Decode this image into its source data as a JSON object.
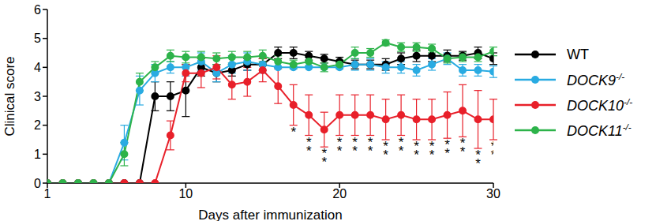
{
  "chart_data": {
    "type": "line",
    "x_label": "Days after immunization",
    "y_label": "Clinical score",
    "x": [
      1,
      2,
      3,
      4,
      5,
      6,
      7,
      8,
      9,
      10,
      11,
      12,
      13,
      14,
      15,
      16,
      17,
      18,
      19,
      20,
      21,
      22,
      23,
      24,
      25,
      26,
      27,
      28,
      29,
      30
    ],
    "xlim": [
      1,
      30
    ],
    "xticks": [
      1,
      10,
      20,
      30
    ],
    "ylim": [
      0,
      6
    ],
    "yticks": [
      0,
      1,
      2,
      3,
      4,
      5,
      6
    ],
    "grid": false,
    "legend": "right",
    "marker": "circle",
    "line_style": "solid",
    "series": [
      {
        "name": "WT",
        "color": "#000000",
        "values": [
          0,
          0,
          0,
          0,
          0,
          0,
          0,
          3.0,
          3.0,
          3.2,
          4.0,
          3.8,
          3.9,
          4.1,
          4.1,
          4.5,
          4.5,
          4.4,
          4.3,
          4.2,
          4.1,
          4.1,
          4.1,
          4.3,
          4.4,
          4.4,
          4.4,
          4.4,
          4.5,
          4.3
        ],
        "errors": [
          0,
          0,
          0,
          0,
          0,
          0,
          0,
          0.5,
          0.5,
          0.9,
          0.3,
          0.3,
          0.2,
          0.2,
          0.2,
          0.2,
          0.2,
          0.15,
          0.15,
          0.15,
          0.15,
          0.15,
          0.2,
          0.2,
          0.2,
          0.2,
          0.2,
          0.15,
          0.2,
          0.2
        ]
      },
      {
        "name": "DOCK9-/-",
        "color": "#29abe2",
        "values": [
          0,
          0,
          0,
          0,
          0,
          1.4,
          3.2,
          3.8,
          4.0,
          4.0,
          4.2,
          3.8,
          4.1,
          4.2,
          4.1,
          4.0,
          4.0,
          4.0,
          4.0,
          4.0,
          4.1,
          4.1,
          4.0,
          4.0,
          3.9,
          4.1,
          4.3,
          3.9,
          3.9,
          3.85
        ],
        "errors": [
          0,
          0,
          0,
          0,
          0,
          0.6,
          0.5,
          0.3,
          0.2,
          0.3,
          0.3,
          0.3,
          0.3,
          0.3,
          0.3,
          0,
          0,
          0,
          0,
          0,
          0.2,
          0.2,
          0.2,
          0.2,
          0.2,
          0.2,
          0.2,
          0.2,
          0.2,
          0.2
        ]
      },
      {
        "name": "DOCK10-/-",
        "color": "#e8202a",
        "values": [
          0,
          0,
          0,
          0,
          0,
          0,
          0,
          0,
          1.65,
          3.8,
          3.8,
          4.0,
          3.4,
          3.5,
          3.9,
          3.35,
          2.7,
          2.35,
          1.85,
          2.35,
          2.35,
          2.35,
          2.2,
          2.35,
          2.2,
          2.2,
          2.35,
          2.5,
          2.2,
          2.2
        ],
        "errors": [
          0,
          0,
          0,
          0,
          0,
          0,
          0,
          0,
          0.5,
          0.3,
          0.5,
          0.4,
          0.5,
          0.5,
          0.4,
          0.6,
          0.7,
          0.7,
          0.6,
          0.7,
          0.7,
          0.7,
          0.7,
          0.7,
          0.7,
          0.7,
          0.8,
          0.9,
          1.0,
          0.7
        ],
        "annotations": [
          {
            "x": 17,
            "text": "*"
          },
          {
            "x": 18,
            "text": "**"
          },
          {
            "x": 19,
            "text": "**"
          },
          {
            "x": 20,
            "text": "**"
          },
          {
            "x": 21,
            "text": "**"
          },
          {
            "x": 22,
            "text": "**"
          },
          {
            "x": 23,
            "text": "**"
          },
          {
            "x": 24,
            "text": "**"
          },
          {
            "x": 25,
            "text": "**"
          },
          {
            "x": 26,
            "text": "**"
          },
          {
            "x": 27,
            "text": "**"
          },
          {
            "x": 28,
            "text": "**"
          },
          {
            "x": 29,
            "text": "**"
          },
          {
            "x": 30,
            "text": "**"
          }
        ]
      },
      {
        "name": "DOCK11-/-",
        "color": "#2db34a",
        "values": [
          0,
          0,
          0,
          0,
          0,
          1.0,
          3.5,
          4.0,
          4.4,
          4.35,
          4.35,
          4.3,
          4.35,
          4.35,
          4.4,
          4.2,
          4.1,
          4.2,
          4.0,
          4.1,
          4.5,
          4.5,
          4.85,
          4.7,
          4.7,
          4.65,
          4.3,
          4.35,
          4.35,
          4.55
        ],
        "errors": [
          0,
          0,
          0,
          0,
          0,
          0.4,
          0.3,
          0.2,
          0.2,
          0.2,
          0.2,
          0.2,
          0.2,
          0.2,
          0.2,
          0.2,
          0.15,
          0.15,
          0.15,
          0.15,
          0.2,
          0.15,
          0.1,
          0.15,
          0.15,
          0.15,
          0.15,
          0.15,
          0.15,
          0.15
        ]
      }
    ]
  }
}
